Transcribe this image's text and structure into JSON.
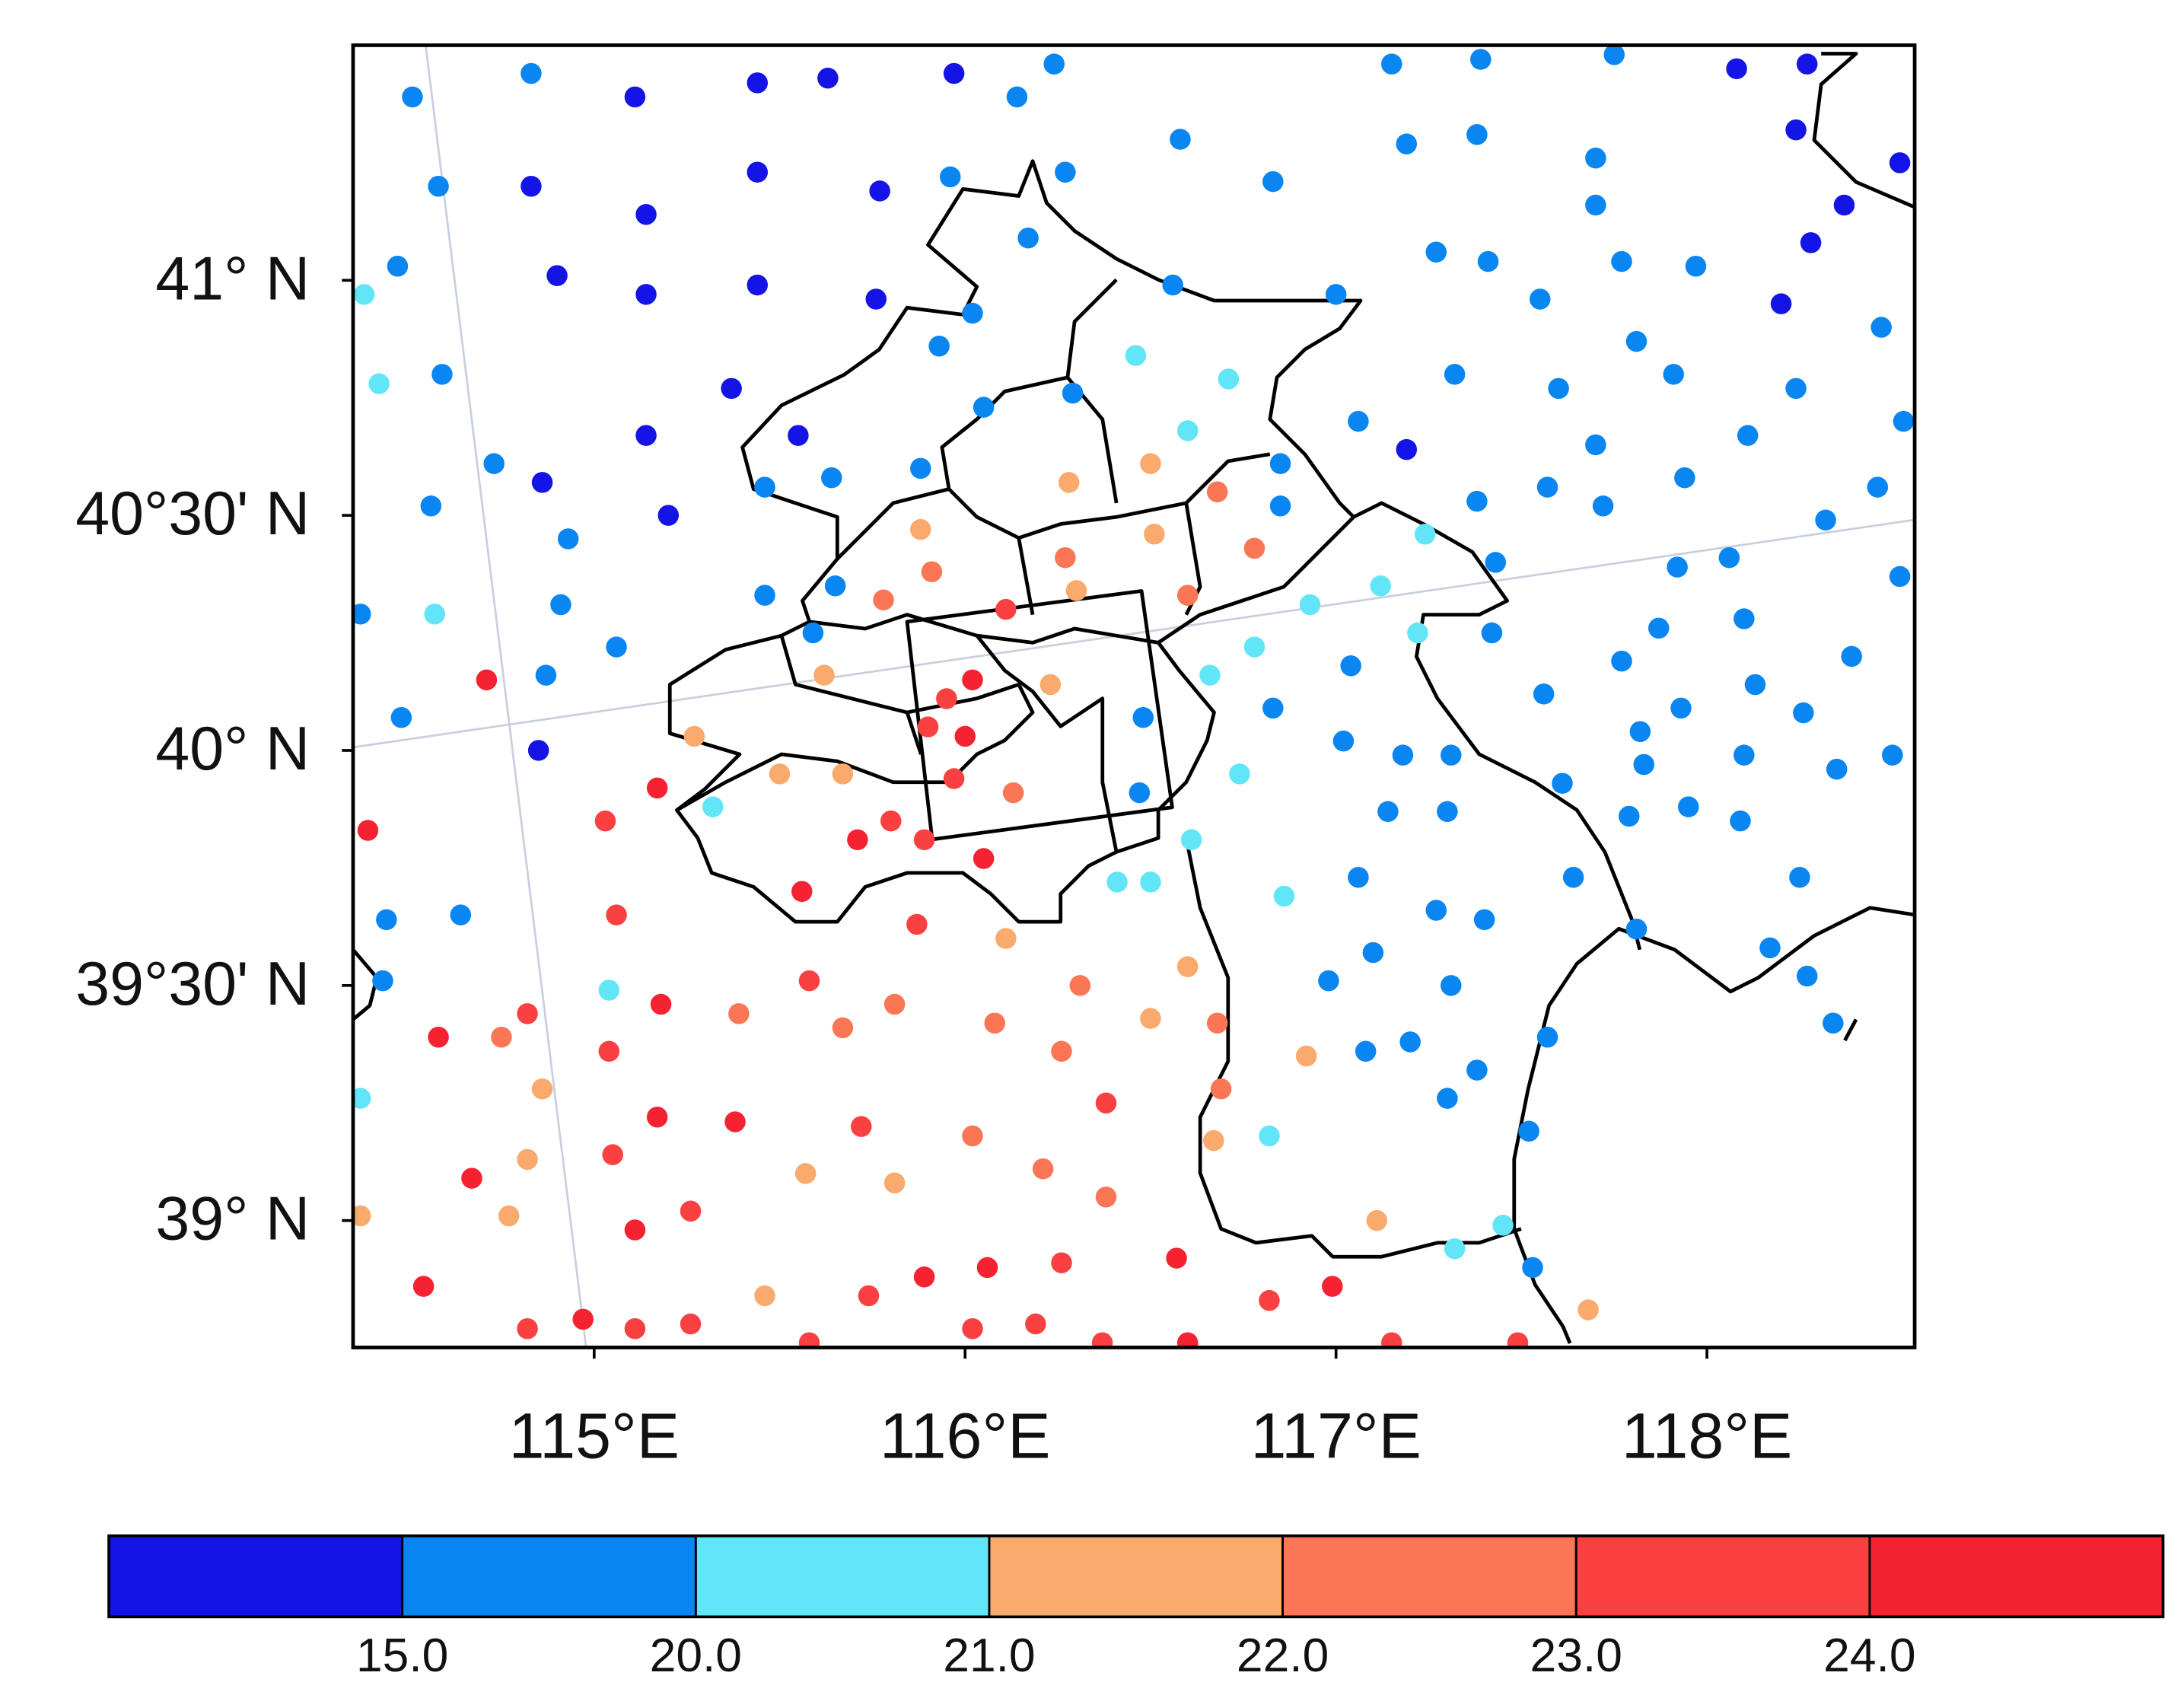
{
  "chart_data": {
    "type": "scatter",
    "xlim": [
      114.35,
      118.56
    ],
    "ylim": [
      38.73,
      41.5
    ],
    "xticks": [
      {
        "value": 115,
        "label": "115°E"
      },
      {
        "value": 116,
        "label": "116°E"
      },
      {
        "value": 117,
        "label": "117°E"
      },
      {
        "value": 118,
        "label": "118°E"
      }
    ],
    "yticks": [
      {
        "value": 39,
        "label": "39° N"
      },
      {
        "value": 39.5,
        "label": "39°30' N"
      },
      {
        "value": 40,
        "label": "40° N"
      },
      {
        "value": 40.5,
        "label": "40°30' N"
      },
      {
        "value": 41,
        "label": "41° N"
      }
    ],
    "colorbar": {
      "ticks": [
        {
          "value": 15,
          "label": "15.0"
        },
        {
          "value": 20,
          "label": "20.0"
        },
        {
          "value": 21,
          "label": "21.0"
        },
        {
          "value": 22,
          "label": "22.0"
        },
        {
          "value": 23,
          "label": "23.0"
        },
        {
          "value": 24,
          "label": "24.0"
        }
      ],
      "colors": [
        "#1414e6",
        "#0a86f2",
        "#62e6f7",
        "#f9aa6c",
        "#fb7654",
        "#fa4040",
        "#f52232"
      ]
    },
    "series": [
      {
        "color": "#1414e6",
        "x": [
          115.11,
          115.44,
          115.63,
          115.97,
          114.83,
          115.14,
          115.14,
          115.44,
          115.77,
          114.9,
          115.44,
          115.76,
          115.37,
          115.14,
          115.55,
          114.86,
          115.2,
          114.85,
          117.19,
          118.08,
          118.27,
          118.24,
          118.37,
          118.28,
          118.2,
          118.52
        ],
        "y": [
          41.39,
          41.42,
          41.43,
          41.44,
          41.2,
          41.14,
          40.97,
          41.23,
          41.19,
          41.01,
          40.99,
          40.96,
          40.77,
          40.67,
          40.67,
          40.57,
          40.5,
          40.0,
          40.64,
          41.45,
          41.46,
          41.32,
          41.16,
          41.08,
          40.95,
          41.25
        ]
      },
      {
        "color": "#0a86f2",
        "x": [
          114.51,
          114.83,
          116.14,
          116.24,
          114.58,
          114.47,
          114.59,
          114.73,
          114.56,
          114.93,
          114.91,
          115.06,
          114.87,
          114.48,
          114.37,
          114.44,
          114.64,
          114.43,
          115.96,
          116.27,
          116.17,
          116.02,
          115.93,
          116.05,
          116.29,
          115.88,
          115.64,
          115.46,
          115.46,
          115.65,
          115.59,
          116.56,
          117.0,
          116.83,
          116.58,
          117.15,
          117.39,
          117.75,
          117.19,
          117.38,
          117.7,
          117.7,
          117.77,
          117.97,
          117.55,
          117.27,
          117.41,
          118.47,
          117.81,
          117.6,
          117.32,
          117.91,
          118.24,
          118.53,
          117.06,
          117.7,
          117.57,
          117.94,
          118.11,
          118.46,
          118.32,
          117.72,
          117.38,
          116.85,
          116.85,
          117.43,
          117.92,
          118.06,
          118.52,
          118.1,
          117.87,
          117.77,
          117.42,
          118.39,
          118.13,
          117.93,
          118.26,
          117.56,
          117.82,
          117.83,
          118.1,
          118.35,
          118.5,
          117.61,
          117.95,
          117.79,
          118.09,
          118.25,
          117.81,
          117.64,
          117.04,
          116.83,
          117.02,
          117.18,
          117.31,
          117.14,
          117.3,
          117.06,
          117.27,
          117.4,
          117.1,
          116.98,
          117.31,
          117.2,
          117.08,
          117.38,
          117.3,
          117.57,
          117.52,
          117.53,
          118.17,
          118.27,
          118.34,
          116.48,
          116.47
        ],
        "y": [
          41.39,
          41.44,
          41.39,
          41.46,
          41.2,
          41.03,
          40.8,
          40.61,
          40.52,
          40.45,
          40.31,
          40.22,
          40.16,
          40.07,
          40.29,
          39.64,
          39.65,
          39.51,
          41.22,
          41.23,
          41.09,
          40.93,
          40.86,
          40.73,
          40.76,
          40.6,
          40.58,
          40.56,
          40.33,
          40.35,
          40.25,
          40.99,
          40.97,
          41.21,
          41.3,
          41.46,
          41.47,
          41.48,
          41.29,
          41.31,
          41.26,
          41.16,
          41.04,
          41.03,
          40.96,
          41.06,
          41.04,
          40.9,
          40.87,
          40.77,
          40.8,
          40.8,
          40.77,
          40.7,
          40.7,
          40.65,
          40.56,
          40.58,
          40.67,
          40.56,
          40.49,
          40.52,
          40.53,
          40.61,
          40.52,
          40.4,
          40.39,
          40.41,
          40.37,
          40.28,
          40.26,
          40.19,
          40.25,
          40.2,
          40.14,
          40.09,
          40.08,
          40.12,
          40.04,
          39.97,
          39.99,
          39.96,
          39.99,
          39.93,
          39.88,
          39.86,
          39.85,
          39.73,
          39.62,
          39.73,
          40.18,
          40.09,
          40.02,
          39.99,
          39.99,
          39.87,
          39.87,
          39.73,
          39.66,
          39.64,
          39.57,
          39.51,
          39.5,
          39.38,
          39.36,
          39.32,
          39.26,
          39.39,
          39.19,
          38.9,
          39.58,
          39.52,
          39.42,
          40.07,
          39.91
        ]
      },
      {
        "color": "#62e6f7",
        "x": [
          114.38,
          114.42,
          114.57,
          114.37,
          115.04,
          116.46,
          116.71,
          116.6,
          116.93,
          117.12,
          117.24,
          117.22,
          116.78,
          116.66,
          116.74,
          116.41,
          116.5,
          116.61,
          116.86,
          116.82,
          117.32,
          117.45,
          115.32
        ],
        "y": [
          40.97,
          40.78,
          40.29,
          39.26,
          39.49,
          40.84,
          40.79,
          40.68,
          40.31,
          40.35,
          40.46,
          40.25,
          40.22,
          40.16,
          39.95,
          39.72,
          39.72,
          39.81,
          39.69,
          39.18,
          38.94,
          38.99,
          39.88
        ]
      },
      {
        "color": "#f9aa6c",
        "x": [
          115.88,
          116.28,
          116.5,
          116.51,
          116.3,
          115.62,
          116.23,
          115.5,
          115.67,
          115.27,
          116.11,
          116.6,
          116.5,
          116.92,
          116.67,
          114.86,
          114.82,
          114.77,
          114.37,
          115.81,
          115.57,
          115.46,
          117.11,
          117.68
        ],
        "y": [
          40.47,
          40.57,
          40.61,
          40.46,
          40.34,
          40.16,
          40.14,
          39.95,
          39.95,
          40.03,
          39.6,
          39.54,
          39.43,
          39.35,
          39.17,
          39.28,
          39.13,
          39.01,
          39.01,
          39.08,
          39.1,
          38.84,
          39.0,
          38.81
        ]
      },
      {
        "color": "#fb7654",
        "x": [
          115.91,
          115.78,
          116.27,
          116.6,
          116.68,
          116.78,
          116.13,
          115.39,
          115.81,
          116.08,
          116.26,
          115.67,
          116.02,
          116.21,
          116.38,
          114.75,
          116.69,
          116.68,
          116.31
        ],
        "y": [
          40.38,
          40.32,
          40.41,
          40.33,
          40.55,
          40.43,
          39.91,
          39.44,
          39.46,
          39.42,
          39.36,
          39.41,
          39.18,
          39.11,
          39.05,
          39.39,
          39.28,
          39.42,
          39.5
        ]
      },
      {
        "color": "#fa4040",
        "x": [
          115.03,
          115.8,
          115.89,
          115.87,
          115.97,
          115.9,
          115.95,
          116.11,
          115.06,
          114.82,
          115.58,
          115.04,
          115.72,
          115.05,
          115.26,
          114.82,
          115.11,
          115.26,
          115.58,
          115.74,
          116.26,
          116.02,
          116.19,
          116.37,
          116.82,
          117.15,
          117.49,
          116.38
        ],
        "y": [
          39.85,
          39.85,
          39.81,
          39.63,
          39.94,
          40.05,
          40.11,
          40.3,
          39.65,
          39.44,
          39.51,
          39.36,
          39.2,
          39.14,
          39.02,
          38.77,
          38.77,
          38.78,
          38.74,
          38.84,
          38.91,
          38.77,
          38.78,
          38.74,
          38.83,
          38.74,
          38.74,
          39.25
        ]
      },
      {
        "color": "#f52232",
        "x": [
          114.71,
          115.17,
          114.39,
          115.71,
          116.05,
          115.56,
          116.0,
          116.02,
          115.18,
          114.58,
          115.17,
          115.38,
          114.67,
          115.11,
          114.54,
          114.97,
          115.89,
          116.06,
          116.57,
          116.99,
          116.6
        ],
        "y": [
          40.15,
          39.92,
          39.83,
          39.81,
          39.77,
          39.7,
          40.03,
          40.15,
          39.46,
          39.39,
          39.22,
          39.21,
          39.09,
          38.98,
          38.86,
          38.79,
          38.88,
          38.9,
          38.92,
          38.86,
          38.74
        ]
      }
    ]
  }
}
